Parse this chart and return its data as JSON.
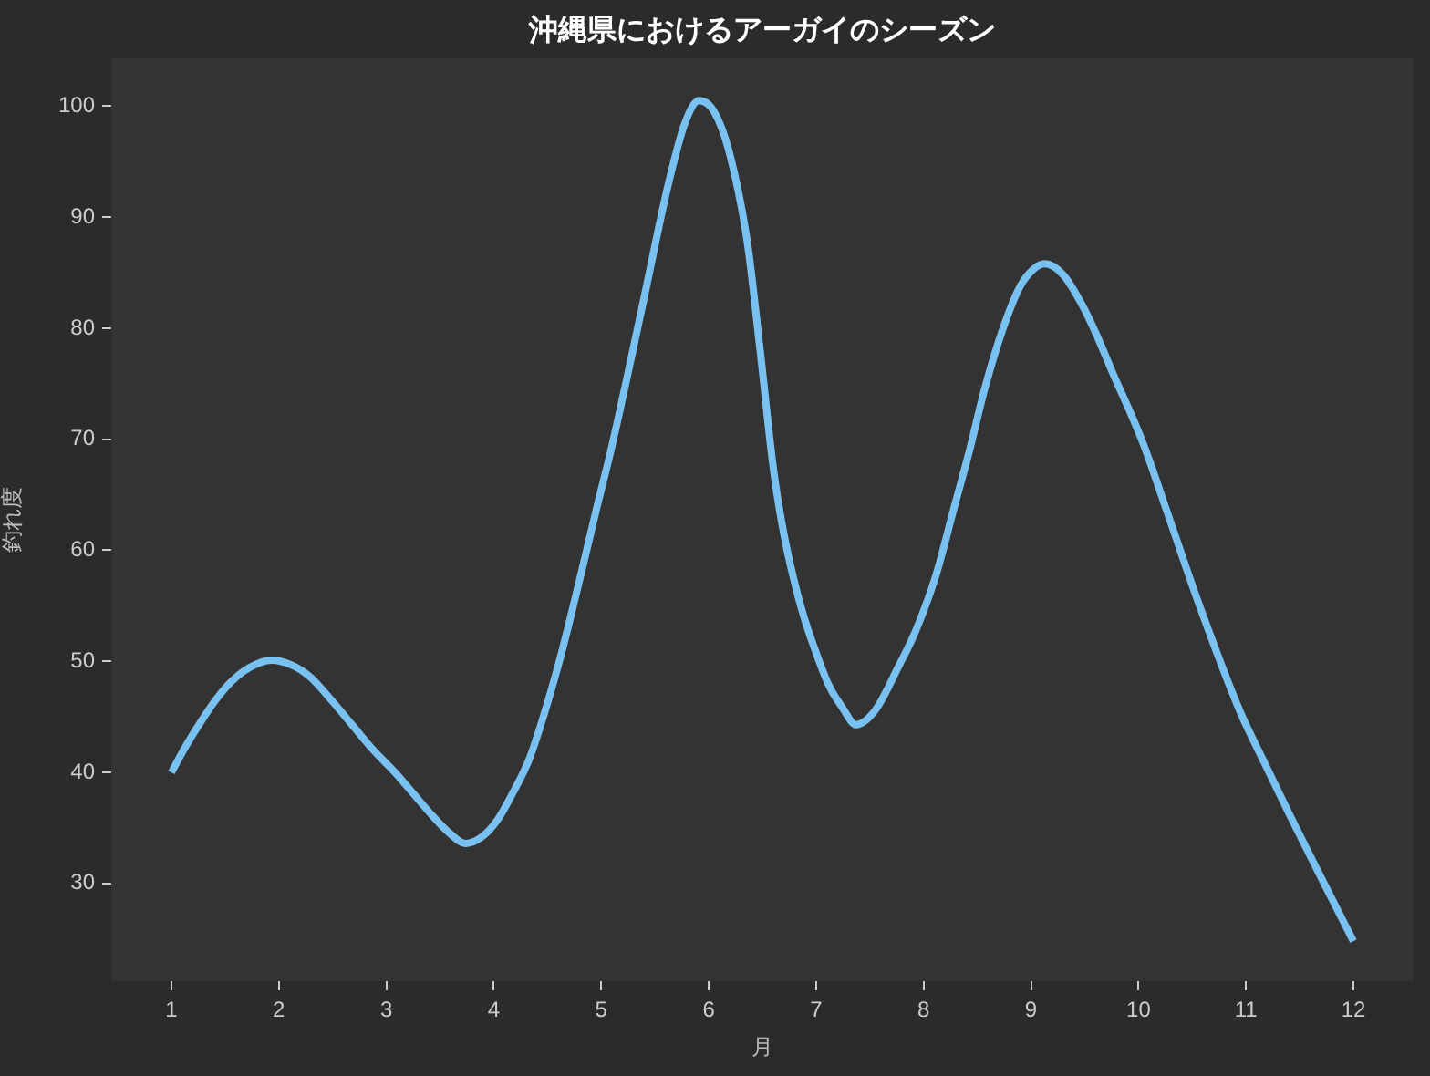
{
  "chart_data": {
    "type": "line",
    "title": "沖縄県におけるアーガイのシーズン",
    "xlabel": "月",
    "ylabel": "釣れ度",
    "x": [
      1.0,
      1.13,
      1.27,
      1.41,
      1.55,
      1.72,
      1.93,
      2.11,
      2.29,
      2.48,
      2.68,
      2.88,
      3.08,
      3.25,
      3.41,
      3.58,
      3.74,
      3.89,
      4.04,
      4.18,
      4.33,
      4.47,
      4.61,
      4.72,
      4.83,
      4.96,
      5.09,
      5.25,
      5.4,
      5.63,
      5.78,
      5.91,
      6.05,
      6.19,
      6.36,
      6.48,
      6.6,
      6.68,
      6.76,
      6.88,
      7.01,
      7.12,
      7.24,
      7.37,
      7.55,
      7.77,
      7.92,
      8.11,
      8.28,
      8.43,
      8.57,
      8.74,
      8.9,
      9.02,
      9.13,
      9.3,
      9.47,
      9.61,
      9.75,
      10.04,
      10.3,
      10.55,
      10.94,
      11.17,
      11.4,
      11.68,
      12.0
    ],
    "series": [
      {
        "color": "#78c1f0",
        "values": [
          40.0,
          42.3,
          44.5,
          46.5,
          48.1,
          49.4,
          50.1,
          49.7,
          48.6,
          46.6,
          44.3,
          42.0,
          40.0,
          38.1,
          36.3,
          34.6,
          33.6,
          34.2,
          35.8,
          38.2,
          41.2,
          45.3,
          50.0,
          54.2,
          58.6,
          63.9,
          69.0,
          76.0,
          82.8,
          93.2,
          98.5,
          100.5,
          99.5,
          95.9,
          87.7,
          77.9,
          67.5,
          62.5,
          58.7,
          54.2,
          50.5,
          47.8,
          45.9,
          44.3,
          45.6,
          49.6,
          52.6,
          57.6,
          63.7,
          69.1,
          74.6,
          80.0,
          83.8,
          85.3,
          85.8,
          84.8,
          82.2,
          79.4,
          76.2,
          69.7,
          62.5,
          55.5,
          45.6,
          40.9,
          36.3,
          30.9,
          24.8
        ]
      }
    ],
    "xlim": [
      0.44,
      12.56
    ],
    "ylim": [
      21.2,
      104.3
    ],
    "xticks": [
      1,
      2,
      3,
      4,
      5,
      6,
      7,
      8,
      9,
      10,
      11,
      12
    ],
    "yticks": [
      30,
      40,
      50,
      60,
      70,
      80,
      90,
      100
    ],
    "line_style": "solid"
  }
}
